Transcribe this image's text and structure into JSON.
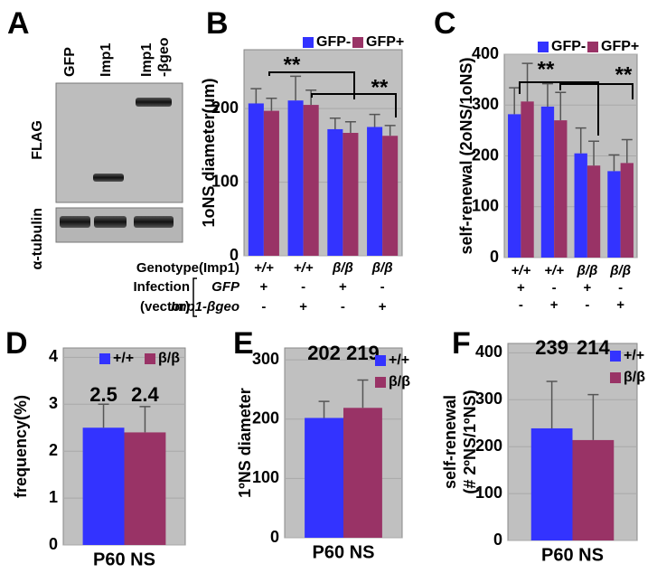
{
  "panel_labels": [
    "A",
    "B",
    "C",
    "D",
    "E",
    "F"
  ],
  "blot": {
    "lanes": [
      [
        "GFP"
      ],
      [
        "Imp1"
      ],
      [
        "Imp1",
        "-βgeo"
      ]
    ],
    "rows": [
      "FLAG",
      "α-tubulin"
    ]
  },
  "genotype_key": {
    "genotype": "Genotype(Imp1)",
    "infection": "Infection",
    "vector": "(vector)",
    "rows": [
      "GFP",
      "Imp1-βgeo"
    ]
  },
  "chart_data": [
    {
      "type": "bar",
      "ylabel": [
        "1oNS diameter(μm)"
      ],
      "categories": [
        "+/+",
        "+/+",
        "β/β",
        "β/β"
      ],
      "infection": [
        [
          "+",
          "-",
          "+",
          "-"
        ],
        [
          "-",
          "+",
          "-",
          "+"
        ]
      ],
      "series": [
        {
          "name": "GFP-",
          "color": "#3333ff",
          "values": [
            207,
            211,
            172,
            175
          ],
          "errors": [
            20,
            33,
            15,
            17
          ]
        },
        {
          "name": "GFP+",
          "color": "#993366",
          "values": [
            197,
            205,
            167,
            163
          ],
          "errors": [
            17,
            20,
            15,
            14
          ]
        }
      ],
      "ylim": [
        0,
        280
      ],
      "yticks": [
        0,
        100,
        200
      ],
      "legend": "top-right",
      "annotations": [
        "**",
        "**"
      ]
    },
    {
      "type": "bar",
      "ylabel": [
        "self-renewal (2oNS/1oNS)"
      ],
      "categories": [
        "+/+",
        "+/+",
        "β/β",
        "β/β"
      ],
      "infection": [
        [
          "+",
          "-",
          "+",
          "-"
        ],
        [
          "-",
          "+",
          "-",
          "+"
        ]
      ],
      "series": [
        {
          "name": "GFP-",
          "color": "#3333ff",
          "values": [
            282,
            297,
            205,
            170
          ],
          "errors": [
            52,
            45,
            50,
            32
          ]
        },
        {
          "name": "GFP+",
          "color": "#993366",
          "values": [
            307,
            270,
            181,
            186
          ],
          "errors": [
            75,
            55,
            48,
            46
          ]
        }
      ],
      "ylim": [
        0,
        400
      ],
      "yticks": [
        0,
        100,
        200,
        300,
        400
      ],
      "legend": "top-right",
      "annotations": [
        "**",
        "**"
      ]
    },
    {
      "type": "bar",
      "ylabel": [
        "frequency(%)"
      ],
      "categories": [
        "P60 NS"
      ],
      "series": [
        {
          "name": "+/+",
          "color": "#3333ff",
          "values": [
            2.5
          ],
          "errors": [
            0.5
          ]
        },
        {
          "name": "β/β",
          "color": "#993366",
          "values": [
            2.4
          ],
          "errors": [
            0.55
          ]
        }
      ],
      "ylim": [
        0,
        4.2
      ],
      "yticks": [
        0,
        1,
        2,
        3,
        4
      ],
      "legend": "top"
    },
    {
      "type": "bar",
      "ylabel": [
        "1ºNS diameter"
      ],
      "categories": [
        "P60 NS"
      ],
      "series": [
        {
          "name": "+/+",
          "color": "#3333ff",
          "values": [
            202
          ],
          "errors": [
            28
          ]
        },
        {
          "name": "β/β",
          "color": "#993366",
          "values": [
            219
          ],
          "errors": [
            47
          ]
        }
      ],
      "ylim": [
        0,
        320
      ],
      "yticks": [
        0,
        100,
        200,
        300
      ],
      "legend": "right"
    },
    {
      "type": "bar",
      "ylabel": [
        "self-renewal",
        "(# 2ºNS/1ºNS)"
      ],
      "categories": [
        "P60 NS"
      ],
      "series": [
        {
          "name": "+/+",
          "color": "#3333ff",
          "values": [
            239
          ],
          "errors": [
            100
          ]
        },
        {
          "name": "β/β",
          "color": "#993366",
          "values": [
            214
          ],
          "errors": [
            97
          ]
        }
      ],
      "ylim": [
        0,
        420
      ],
      "yticks": [
        0,
        100,
        200,
        300,
        400
      ],
      "legend": "right"
    }
  ]
}
